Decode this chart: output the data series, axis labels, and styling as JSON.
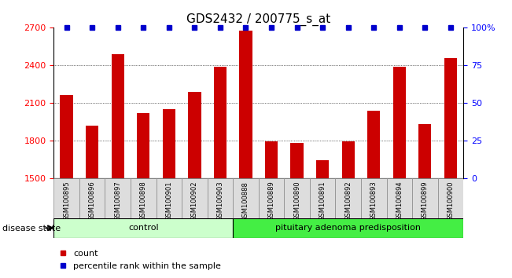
{
  "title": "GDS2432 / 200775_s_at",
  "samples": [
    "GSM100895",
    "GSM100896",
    "GSM100897",
    "GSM100898",
    "GSM100901",
    "GSM100902",
    "GSM100903",
    "GSM100888",
    "GSM100889",
    "GSM100890",
    "GSM100891",
    "GSM100892",
    "GSM100893",
    "GSM100894",
    "GSM100899",
    "GSM100900"
  ],
  "counts": [
    2160,
    1920,
    2490,
    2020,
    2050,
    2190,
    2390,
    2680,
    1790,
    1780,
    1640,
    1790,
    2040,
    2390,
    1930,
    2460
  ],
  "groups": [
    {
      "label": "control",
      "start": 0,
      "end": 7,
      "color": "#ccffcc"
    },
    {
      "label": "pituitary adenoma predisposition",
      "start": 7,
      "end": 16,
      "color": "#44ee44"
    }
  ],
  "ylim_left": [
    1500,
    2700
  ],
  "ylim_right": [
    0,
    100
  ],
  "yticks_left": [
    1500,
    1800,
    2100,
    2400,
    2700
  ],
  "yticks_right": [
    0,
    25,
    50,
    75,
    100
  ],
  "bar_color": "#cc0000",
  "dot_color": "#0000cc",
  "dot_value": 100,
  "grid_values": [
    1800,
    2100,
    2400
  ],
  "disease_state_label": "disease state",
  "legend_count_label": "count",
  "legend_percentile_label": "percentile rank within the sample",
  "title_fontsize": 11,
  "tick_fontsize": 8,
  "sample_fontsize": 6
}
